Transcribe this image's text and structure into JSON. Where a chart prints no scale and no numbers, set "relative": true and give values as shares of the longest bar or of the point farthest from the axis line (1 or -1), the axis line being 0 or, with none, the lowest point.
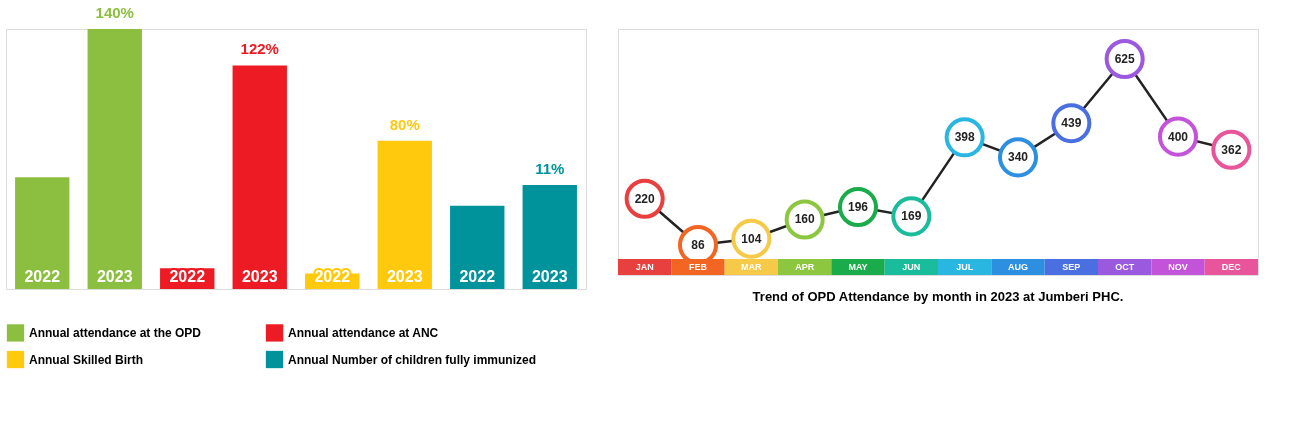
{
  "chart_data": [
    {
      "type": "bar",
      "relative": true,
      "legend": "bottom",
      "categories": [
        "2022",
        "2023",
        "2022",
        "2023",
        "2022",
        "2023",
        "2022",
        "2023"
      ],
      "series": [
        {
          "name": "Annual attendance at the OPD",
          "color": "#8cbf3f",
          "values": [
            0.43,
            1.0,
            null,
            null,
            null,
            null,
            null,
            null
          ]
        },
        {
          "name": "Annual attendance at ANC",
          "color": "#ed1c24",
          "values": [
            null,
            null,
            0.08,
            0.86,
            null,
            null,
            null,
            null
          ]
        },
        {
          "name": "Annual Skilled Birth",
          "color": "#ffc90e",
          "values": [
            null,
            null,
            null,
            null,
            0.06,
            0.57,
            null,
            null
          ]
        },
        {
          "name": "Annual Number of children fully immunized",
          "color": "#00939b",
          "values": [
            null,
            null,
            null,
            null,
            null,
            null,
            0.32,
            0.4
          ]
        }
      ],
      "annotations": [
        "140%",
        "122%",
        "80%",
        "11%"
      ]
    },
    {
      "type": "line",
      "title": "Trend of OPD Attendance by month in 2023  at Jumberi PHC.",
      "data_labels": true,
      "marker": "circle",
      "categories": [
        "JAN",
        "FEB",
        "MAR",
        "APR",
        "MAY",
        "JUN",
        "JUL",
        "AUG",
        "SEP",
        "OCT",
        "NOV",
        "DEC"
      ],
      "colors": [
        "#e8403f",
        "#f26522",
        "#f7c948",
        "#8dc63f",
        "#1aab4b",
        "#1abc9c",
        "#29b6e0",
        "#2d8fe0",
        "#4a6fe0",
        "#9b59e0",
        "#c353d8",
        "#e8559a"
      ],
      "series": [
        {
          "color": "#222222",
          "values": [
            220,
            86,
            104,
            160,
            196,
            169,
            398,
            340,
            439,
            625,
            400,
            362
          ]
        }
      ]
    }
  ]
}
